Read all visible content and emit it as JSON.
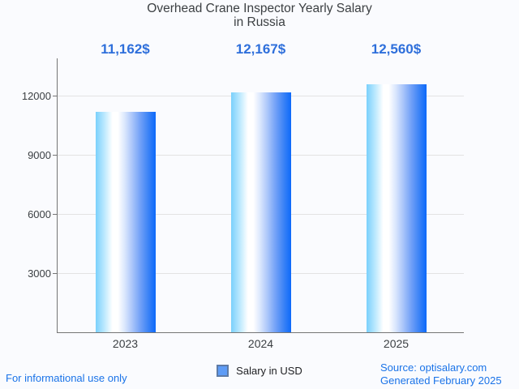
{
  "title": {
    "line1": "Overhead Crane Inspector Yearly Salary",
    "line2": "in Russia"
  },
  "chart_data": {
    "type": "bar",
    "title": "Overhead Crane Inspector Yearly Salary in Russia",
    "categories": [
      "2023",
      "2024",
      "2025"
    ],
    "series": [
      {
        "name": "Salary in USD",
        "values": [
          11162,
          12167,
          12560
        ],
        "value_labels": [
          "11,162$",
          "12,167$",
          "12,560$"
        ]
      }
    ],
    "xlabel": "",
    "ylabel": "",
    "ylim": [
      0,
      13890
    ],
    "yticks": [
      3000,
      6000,
      9000,
      12000
    ],
    "grid": true,
    "legend_position": "bottom"
  },
  "legend": {
    "label": "Salary in USD"
  },
  "footer": {
    "left": "For informational use only",
    "source": "Source: optisalary.com",
    "generated": "Generated February 2025"
  },
  "colors": {
    "background": "#fafbfe",
    "title_text": "#3c4043",
    "axis_line": "#757575",
    "gridline": "#e3e3e3",
    "annotation_blue": "#2e6fdb",
    "footer_blue": "#1a73e8",
    "bar_gradient_left": "#7ad0fc",
    "bar_gradient_mid": "#ffffff",
    "bar_gradient_right": "#0c69fa",
    "legend_swatch": "#5e9cf6"
  }
}
